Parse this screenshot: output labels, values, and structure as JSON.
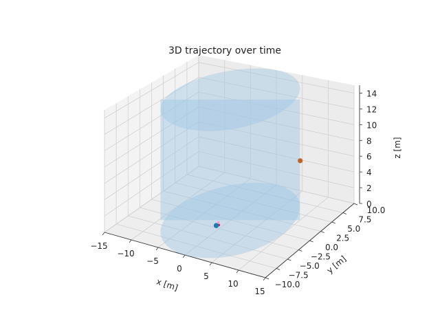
{
  "chart_data": {
    "type": "scatter",
    "title": "3D trajectory over time",
    "xlabel": "x [m]",
    "ylabel": "y [m]",
    "zlabel": "z [m]",
    "xlim": [
      -15,
      15
    ],
    "ylim": [
      -10,
      10
    ],
    "zlim": [
      0,
      15
    ],
    "x_ticks": [
      "−15",
      "−10",
      "−5",
      "0",
      "5",
      "10",
      "15"
    ],
    "y_ticks": [
      "−10.0",
      "−7.5",
      "−5.0",
      "−2.5",
      "0.0",
      "2.5",
      "5.0",
      "7.5",
      "10.0"
    ],
    "z_ticks": [
      "0",
      "2",
      "4",
      "6",
      "8",
      "10",
      "12",
      "14"
    ],
    "grid": true,
    "cylinder": {
      "center": [
        0,
        0
      ],
      "radius": 10,
      "z_range": [
        0,
        15
      ],
      "color": "#9ec5e4"
    },
    "points": [
      {
        "x": -1.0,
        "y": -2.0,
        "z": 0.0,
        "color": "#1f77b4"
      },
      {
        "x": 11.5,
        "y": 2.0,
        "z": 8.3,
        "color": "#c0622a"
      }
    ],
    "trail": [
      {
        "x": -0.5,
        "y": -2.0,
        "z": 0.15,
        "color": "#e0194b"
      },
      {
        "x": -0.6,
        "y": -2.0,
        "z": 0.45,
        "color": "#f0a0c8"
      }
    ]
  }
}
